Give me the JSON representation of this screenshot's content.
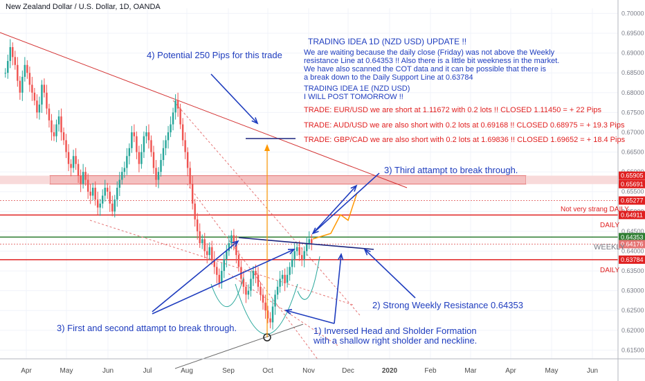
{
  "header": {
    "symbol_title": "New Zealand Dollar / U.S. Dollar, 1D, OANDA"
  },
  "notes": {
    "title": "TRADING IDEA 1D (NZD USD) UPDATE !!",
    "body": "We are waiting because the daily close (Friday) was not above the Weekly\nresistance Line at 0.64353 !! Also there is a little bit weekness in the market.\nWe have also scanned the COT data and it can be possible that there is\na break down to the Daily Support Line at 0.63784",
    "next_idea": "TRADING IDEA 1E (NZD USD)\nI WILL POST TOMORROW !!",
    "trades": [
      "TRADE: EUR/USD we are short at 1.11672 with 0.2 lots !! CLOSED 1.11450 = + 22 Pips",
      "TRADE: AUD/USD we are also short with 0.2 lots at  0.69168 !! CLOSED 0.68975 = + 19.3 Pips",
      "TRADE: GBP/CAD we are also short with 0.2 lots at 1.69836 !! CLOSED 1.69652 = + 18.4 Pips"
    ]
  },
  "annotations": {
    "potential": "4) Potential 250 Pips for this trade",
    "third": "3) Third attampt to break through.",
    "weekly_res": "2) Strong Weekly Resistance 0.64353",
    "first_second": "3) First and second attampt to break through.",
    "ihs_line1": "1) Inversed Head and Sholder Formation",
    "ihs_line2": "with a shallow right sholder and neckline."
  },
  "level_labels": {
    "not_strong": "Not very strang DAILY",
    "daily_upper": "DAILY",
    "weekly": "WEEKLY",
    "daily_lower": "DAILY"
  },
  "chart_data": {
    "type": "candlestick",
    "y_ticks": [
      "0.70000",
      "0.69500",
      "0.69000",
      "0.68500",
      "0.68000",
      "0.67500",
      "0.67000",
      "0.66500",
      "0.66000",
      "0.65500",
      "0.65000",
      "0.64500",
      "0.64000",
      "0.63500",
      "0.63000",
      "0.62500",
      "0.62000",
      "0.61500"
    ],
    "ylim": [
      0.6128,
      0.7013
    ],
    "x_ticks": [
      "Apr",
      "May",
      "Jun",
      "Jul",
      "Aug",
      "Sep",
      "Oct",
      "Nov",
      "Dec",
      "2020",
      "Feb",
      "Mar",
      "Apr",
      "May",
      "Jun"
    ],
    "price_tags": [
      {
        "label": "0.65905",
        "value": 0.65905,
        "color": "#e02020"
      },
      {
        "label": "0.65691",
        "value": 0.65691,
        "color": "#e02020"
      },
      {
        "label": "0.65277",
        "value": 0.65277,
        "color": "#e02020"
      },
      {
        "label": "0.64911",
        "value": 0.64911,
        "color": "#e02020"
      },
      {
        "label": "0.64353",
        "value": 0.64353,
        "color": "#2e7d32"
      },
      {
        "label": "0.64176",
        "value": 0.64176,
        "color": "#e57373"
      },
      {
        "label": "0.63784",
        "value": 0.63784,
        "color": "#e02020"
      }
    ],
    "levels": [
      {
        "name": "resistance-zone-top",
        "value": 0.65905
      },
      {
        "name": "resistance-zone-bottom",
        "value": 0.65691
      },
      {
        "name": "not-strong-daily",
        "value": 0.65277
      },
      {
        "name": "daily-upper",
        "value": 0.64911
      },
      {
        "name": "weekly",
        "value": 0.64353
      },
      {
        "name": "daily-lower",
        "value": 0.63784
      }
    ],
    "ohlc_closes": [
      0.685,
      0.688,
      0.6915,
      0.689,
      0.687,
      0.683,
      0.68,
      0.684,
      0.687,
      0.685,
      0.682,
      0.68,
      0.678,
      0.675,
      0.677,
      0.682,
      0.68,
      0.676,
      0.673,
      0.67,
      0.669,
      0.672,
      0.674,
      0.67,
      0.668,
      0.665,
      0.662,
      0.661,
      0.664,
      0.662,
      0.659,
      0.657,
      0.66,
      0.658,
      0.655,
      0.654,
      0.656,
      0.653,
      0.651,
      0.652,
      0.654,
      0.656,
      0.655,
      0.652,
      0.65,
      0.653,
      0.656,
      0.658,
      0.66,
      0.661,
      0.664,
      0.666,
      0.67,
      0.669,
      0.665,
      0.662,
      0.665,
      0.669,
      0.67,
      0.668,
      0.665,
      0.661,
      0.658,
      0.66,
      0.663,
      0.666,
      0.668,
      0.67,
      0.672,
      0.675,
      0.678,
      0.676,
      0.672,
      0.668,
      0.665,
      0.661,
      0.657,
      0.652,
      0.648,
      0.645,
      0.642,
      0.643,
      0.64,
      0.639,
      0.641,
      0.638,
      0.636,
      0.634,
      0.632,
      0.635,
      0.638,
      0.64,
      0.642,
      0.644,
      0.642,
      0.639,
      0.636,
      0.633,
      0.631,
      0.629,
      0.63,
      0.633,
      0.635,
      0.634,
      0.631,
      0.629,
      0.627,
      0.625,
      0.623,
      0.622,
      0.626,
      0.629,
      0.631,
      0.633,
      0.634,
      0.632,
      0.634,
      0.636,
      0.638,
      0.64,
      0.641,
      0.639,
      0.638,
      0.64,
      0.642,
      0.643,
      0.642
    ]
  }
}
